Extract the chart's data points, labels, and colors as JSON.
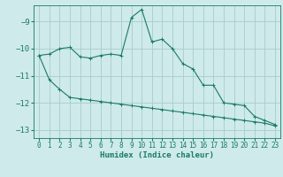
{
  "xlabel": "Humidex (Indice chaleur)",
  "background_color": "#ceeaea",
  "grid_color": "#aacccc",
  "line_color": "#1a7a6a",
  "xlim": [
    -0.5,
    23.5
  ],
  "ylim": [
    -13.3,
    -8.4
  ],
  "yticks": [
    -13,
    -12,
    -11,
    -10,
    -9
  ],
  "xticks": [
    0,
    1,
    2,
    3,
    4,
    5,
    6,
    7,
    8,
    9,
    10,
    11,
    12,
    13,
    14,
    15,
    16,
    17,
    18,
    19,
    20,
    21,
    22,
    23
  ],
  "series1_x": [
    0,
    1,
    2,
    3,
    4,
    5,
    6,
    7,
    8,
    9,
    10,
    11,
    12,
    13,
    14,
    15,
    16,
    17,
    18,
    19,
    20,
    21,
    22,
    23
  ],
  "series1_y": [
    -10.25,
    -10.2,
    -10.0,
    -9.95,
    -10.3,
    -10.35,
    -10.25,
    -10.2,
    -10.25,
    -8.85,
    -8.55,
    -9.75,
    -9.65,
    -10.0,
    -10.55,
    -10.75,
    -11.35,
    -11.35,
    -12.0,
    -12.05,
    -12.1,
    -12.5,
    -12.65,
    -12.8
  ],
  "series2_x": [
    0,
    1,
    2,
    3,
    4,
    5,
    6,
    7,
    8,
    9,
    10,
    11,
    12,
    13,
    14,
    15,
    16,
    17,
    18,
    19,
    20,
    21,
    22,
    23
  ],
  "series2_y": [
    -10.25,
    -11.15,
    -11.5,
    -11.8,
    -11.85,
    -11.9,
    -11.95,
    -12.0,
    -12.05,
    -12.1,
    -12.15,
    -12.2,
    -12.25,
    -12.3,
    -12.35,
    -12.4,
    -12.45,
    -12.5,
    -12.55,
    -12.6,
    -12.65,
    -12.7,
    -12.75,
    -12.85
  ]
}
